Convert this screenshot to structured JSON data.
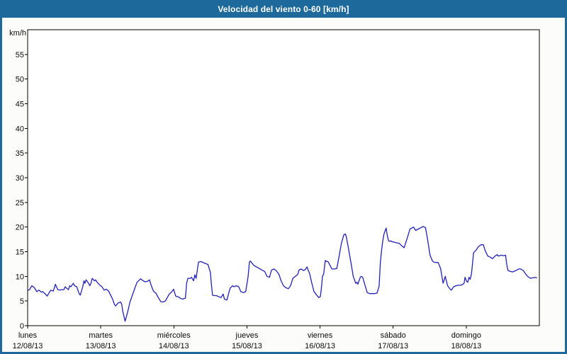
{
  "window": {
    "title": "Velocidad del viento 0-60 [km/h]"
  },
  "colors": {
    "titlebar_bg": "#1e699c",
    "titlebar_text": "#ffffff",
    "window_border": "#1e699c",
    "background": "#fcfdfa",
    "plot_background": "#ffffff",
    "grid": "#000000",
    "series_line": "#2121bd"
  },
  "chart_data": {
    "type": "line",
    "title": "Velocidad del viento 0-60 [km/h]",
    "ylabel": "km/h",
    "ylim": [
      0,
      60
    ],
    "ytick_step": 5,
    "ytick_labels": [
      "0",
      "5",
      "10",
      "15",
      "20",
      "25",
      "30",
      "35",
      "40",
      "45",
      "50",
      "55"
    ],
    "grid": true,
    "legend": false,
    "xlim_hours": [
      0,
      168
    ],
    "x_ticks": [
      {
        "day": "lunes",
        "date": "12/08/13"
      },
      {
        "day": "martes",
        "date": "13/08/13"
      },
      {
        "day": "miércoles",
        "date": "14/08/13"
      },
      {
        "day": "jueves",
        "date": "15/08/13"
      },
      {
        "day": "viernes",
        "date": "16/08/13"
      },
      {
        "day": "sábado",
        "date": "17/08/13"
      },
      {
        "day": "domingo",
        "date": "18/08/13"
      }
    ],
    "series": [
      {
        "color": "#2121bd",
        "x_hours": [
          0.2,
          0.6,
          1.4,
          2.2,
          3.0,
          3.7,
          4.5,
          4.9,
          5.7,
          6.4,
          7.2,
          7.6,
          8.4,
          8.8,
          9.1,
          9.9,
          10.7,
          11.1,
          11.9,
          12.3,
          12.6,
          13.4,
          13.8,
          14.2,
          15.0,
          15.4,
          16.1,
          16.5,
          16.9,
          17.3,
          18.1,
          18.5,
          18.8,
          19.2,
          20.0,
          20.4,
          20.8,
          21.2,
          21.9,
          22.3,
          22.7,
          23.1,
          23.9,
          24.3,
          25.1,
          25.8,
          26.6,
          27.8,
          28.5,
          28.9,
          29.7,
          30.5,
          30.9,
          31.2,
          32.0,
          32.8,
          33.6,
          34.4,
          35.1,
          35.9,
          37.1,
          37.9,
          38.6,
          39.4,
          40.0,
          40.6,
          41.3,
          42.1,
          42.9,
          43.7,
          44.4,
          45.2,
          46.4,
          47.5,
          47.9,
          48.6,
          49.6,
          50.3,
          51.0,
          51.8,
          52.2,
          52.6,
          53.4,
          53.8,
          54.5,
          54.9,
          55.3,
          56.1,
          56.9,
          58.0,
          58.8,
          59.2,
          60.0,
          60.3,
          60.7,
          61.1,
          61.9,
          62.7,
          63.5,
          64.2,
          64.6,
          65.4,
          66.2,
          66.5,
          67.3,
          67.7,
          68.5,
          69.3,
          70.0,
          70.8,
          71.6,
          72.4,
          72.8,
          73.1,
          74.3,
          75.5,
          76.6,
          77.8,
          78.6,
          79.4,
          80.1,
          80.9,
          81.7,
          82.5,
          83.2,
          84.0,
          84.8,
          85.6,
          86.3,
          87.1,
          87.9,
          88.7,
          89.1,
          89.8,
          90.5,
          91.2,
          91.7,
          92.6,
          93.3,
          94.0,
          94.9,
          95.6,
          96.1,
          96.4,
          96.8,
          97.2,
          97.7,
          98.7,
          99.9,
          100.7,
          101.5,
          102.2,
          103.0,
          103.8,
          104.3,
          104.6,
          105.3,
          106.1,
          106.9,
          107.7,
          108.1,
          108.4,
          109.2,
          109.6,
          110.0,
          110.8,
          111.5,
          112.3,
          113.1,
          113.9,
          114.7,
          115.4,
          115.8,
          116.2,
          116.6,
          117.0,
          117.7,
          118.1,
          118.5,
          118.9,
          119.3,
          119.7,
          120.1,
          120.5,
          121.2,
          122.0,
          122.8,
          123.6,
          124.7,
          125.5,
          126.7,
          127.4,
          128.2,
          128.9,
          129.8,
          130.6,
          131.3,
          132.1,
          132.9,
          133.3,
          134.0,
          134.8,
          135.6,
          136.0,
          136.4,
          137.1,
          137.9,
          138.7,
          139.1,
          139.9,
          140.6,
          141.5,
          142.2,
          142.9,
          143.3,
          143.6,
          144.1,
          144.5,
          144.9,
          145.3,
          145.7,
          146.1,
          146.4,
          147.2,
          148.0,
          148.8,
          149.6,
          150.3,
          151.1,
          151.9,
          152.6,
          153.4,
          154.2,
          154.6,
          155.4,
          156.2,
          156.9,
          157.3,
          157.7,
          158.5,
          159.2,
          159.6,
          160.4,
          161.2,
          161.9,
          162.7,
          163.5,
          164.3,
          165.1,
          165.8,
          166.6,
          167.1
        ],
        "values": [
          7.2,
          7.3,
          8.1,
          7.7,
          6.9,
          7.2,
          6.8,
          6.9,
          6.5,
          6.0,
          6.8,
          7.2,
          7.0,
          7.7,
          8.4,
          7.3,
          7.2,
          7.3,
          7.3,
          7.9,
          7.7,
          7.3,
          8.1,
          7.9,
          8.6,
          8.1,
          7.9,
          7.2,
          6.5,
          6.2,
          7.9,
          9.1,
          8.6,
          9.3,
          8.6,
          8.1,
          8.6,
          9.6,
          9.1,
          9.3,
          8.9,
          8.6,
          8.1,
          8.0,
          7.2,
          7.4,
          7.0,
          5.5,
          4.3,
          4.0,
          4.6,
          4.8,
          4.3,
          3.0,
          0.9,
          2.7,
          4.8,
          6.2,
          7.4,
          8.8,
          9.5,
          9.1,
          8.9,
          9.0,
          9.3,
          8.1,
          7.0,
          6.6,
          5.7,
          4.9,
          4.8,
          5.0,
          6.3,
          7.0,
          7.4,
          6.0,
          5.8,
          5.5,
          5.4,
          5.6,
          8.6,
          9.6,
          9.6,
          9.8,
          9.1,
          10.3,
          9.6,
          12.9,
          13.0,
          12.7,
          12.5,
          12.4,
          10.8,
          8.6,
          6.2,
          6.1,
          6.1,
          5.9,
          5.7,
          6.4,
          5.4,
          5.2,
          7.0,
          7.6,
          8.1,
          7.9,
          8.1,
          7.9,
          6.9,
          6.7,
          6.9,
          10.0,
          12.9,
          13.1,
          12.2,
          11.8,
          11.4,
          11.0,
          10.0,
          9.8,
          11.3,
          11.5,
          11.1,
          10.4,
          9.1,
          8.1,
          7.7,
          7.5,
          8.1,
          9.6,
          10.0,
          10.4,
          11.3,
          11.5,
          11.2,
          11.4,
          11.9,
          10.5,
          8.6,
          6.9,
          6.2,
          5.7,
          5.9,
          7.4,
          10.0,
          10.5,
          13.2,
          12.9,
          11.5,
          11.5,
          11.6,
          13.9,
          16.7,
          18.4,
          18.6,
          18.1,
          15.8,
          12.9,
          10.0,
          8.6,
          8.8,
          8.4,
          9.8,
          10.0,
          9.8,
          8.1,
          6.7,
          6.5,
          6.5,
          6.5,
          6.6,
          8.0,
          12.9,
          15.3,
          17.2,
          18.6,
          19.8,
          18.2,
          17.2,
          17.1,
          17.2,
          17.0,
          17.0,
          16.9,
          16.8,
          16.7,
          16.2,
          15.8,
          17.9,
          19.6,
          20.0,
          19.3,
          19.6,
          19.8,
          20.1,
          19.9,
          17.5,
          14.3,
          13.1,
          12.9,
          12.8,
          12.8,
          11.5,
          10.0,
          8.6,
          10.0,
          8.1,
          7.4,
          7.2,
          7.9,
          8.1,
          8.2,
          8.2,
          8.4,
          8.6,
          9.8,
          9.0,
          8.8,
          9.8,
          9.4,
          10.5,
          12.9,
          14.8,
          15.3,
          16.0,
          16.4,
          16.4,
          15.1,
          14.1,
          13.9,
          13.6,
          14.1,
          14.4,
          14.1,
          14.3,
          14.2,
          14.3,
          12.4,
          11.2,
          11.0,
          10.9,
          11.0,
          11.2,
          11.5,
          11.5,
          11.2,
          10.5,
          9.9,
          9.6,
          9.7,
          9.8,
          9.7
        ]
      }
    ]
  }
}
